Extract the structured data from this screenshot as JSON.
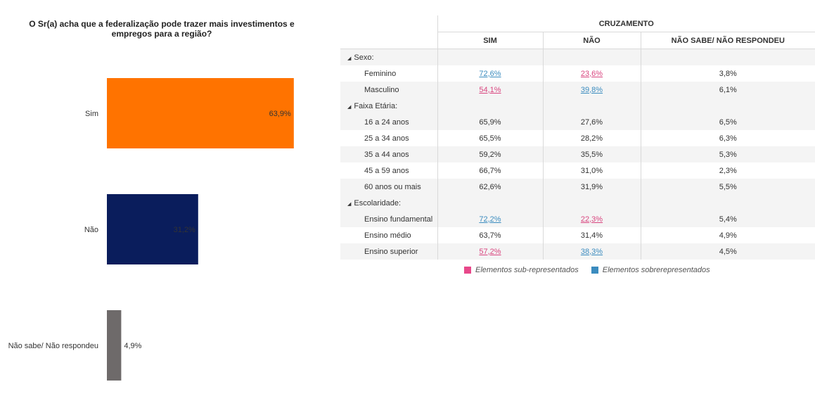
{
  "chart_data": {
    "type": "bar",
    "orientation": "horizontal",
    "title": "O Sr(a) acha que a federalização pode trazer mais investimentos e empregos para a região?",
    "categories": [
      "Sim",
      "Não",
      "Não sabe/ Não respondeu"
    ],
    "values": [
      63.9,
      31.2,
      4.9
    ],
    "value_labels": [
      "63,9%",
      "31,2%",
      "4,9%"
    ],
    "colors": [
      "#ff7300",
      "#0a1d5c",
      "#6e6a6a"
    ],
    "xlim": [
      0,
      100
    ],
    "grid": false,
    "legend": "none"
  },
  "table": {
    "super_header": "CRUZAMENTO",
    "columns": [
      "SIM",
      "NÃO",
      "NÃO SABE/ NÃO RESPONDEU"
    ],
    "groups": [
      {
        "label": "Sexo:",
        "rows": [
          {
            "label": "Feminino",
            "values": [
              "72,6%",
              "23,6%",
              "3,8%"
            ],
            "flags": [
              "over",
              "under",
              ""
            ]
          },
          {
            "label": "Masculino",
            "values": [
              "54,1%",
              "39,8%",
              "6,1%"
            ],
            "flags": [
              "under",
              "over",
              ""
            ]
          }
        ]
      },
      {
        "label": "Faixa Etária:",
        "rows": [
          {
            "label": "16 a 24 anos",
            "values": [
              "65,9%",
              "27,6%",
              "6,5%"
            ],
            "flags": [
              "",
              "",
              ""
            ]
          },
          {
            "label": "25 a 34 anos",
            "values": [
              "65,5%",
              "28,2%",
              "6,3%"
            ],
            "flags": [
              "",
              "",
              ""
            ]
          },
          {
            "label": "35 a 44 anos",
            "values": [
              "59,2%",
              "35,5%",
              "5,3%"
            ],
            "flags": [
              "",
              "",
              ""
            ]
          },
          {
            "label": "45 a 59 anos",
            "values": [
              "66,7%",
              "31,0%",
              "2,3%"
            ],
            "flags": [
              "",
              "",
              ""
            ]
          },
          {
            "label": "60 anos ou mais",
            "values": [
              "62,6%",
              "31,9%",
              "5,5%"
            ],
            "flags": [
              "",
              "",
              ""
            ]
          }
        ]
      },
      {
        "label": "Escolaridade:",
        "rows": [
          {
            "label": "Ensino fundamental",
            "values": [
              "72,2%",
              "22,3%",
              "5,4%"
            ],
            "flags": [
              "over",
              "under",
              ""
            ]
          },
          {
            "label": "Ensino médio",
            "values": [
              "63,7%",
              "31,4%",
              "4,9%"
            ],
            "flags": [
              "",
              "",
              ""
            ]
          },
          {
            "label": "Ensino superior",
            "values": [
              "57,2%",
              "38,3%",
              "4,5%"
            ],
            "flags": [
              "under",
              "over",
              ""
            ]
          }
        ]
      }
    ]
  },
  "legend": {
    "under_label": "Elementos sub-representados",
    "over_label": "Elementos sobrerepresentados",
    "under_color": "#e8488a",
    "over_color": "#3b8cbf"
  }
}
